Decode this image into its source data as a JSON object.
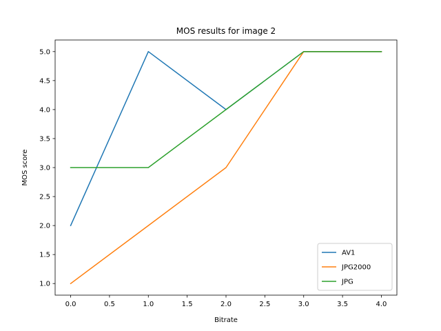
{
  "chart_data": {
    "type": "line",
    "title": "MOS results for image 2",
    "xlabel": "Bitrate",
    "ylabel": "MOS score",
    "xlim": [
      -0.2,
      4.2
    ],
    "ylim": [
      0.8,
      5.2
    ],
    "xticks": [
      0.0,
      0.5,
      1.0,
      1.5,
      2.0,
      2.5,
      3.0,
      3.5,
      4.0
    ],
    "xtick_labels": [
      "0.0",
      "0.5",
      "1.0",
      "1.5",
      "2.0",
      "2.5",
      "3.0",
      "3.5",
      "4.0"
    ],
    "yticks": [
      1.0,
      1.5,
      2.0,
      2.5,
      3.0,
      3.5,
      4.0,
      4.5,
      5.0
    ],
    "ytick_labels": [
      "1.0",
      "1.5",
      "2.0",
      "2.5",
      "3.0",
      "3.5",
      "4.0",
      "4.5",
      "5.0"
    ],
    "grid": false,
    "legend_position": "lower-right",
    "x": [
      0,
      1,
      2,
      3,
      4
    ],
    "series": [
      {
        "name": "AV1",
        "values": [
          2,
          5,
          4,
          5,
          5
        ],
        "color": "#1f77b4"
      },
      {
        "name": "JPG2000",
        "values": [
          1,
          2,
          3,
          5,
          5
        ],
        "color": "#ff7f0e"
      },
      {
        "name": "JPG",
        "values": [
          3,
          3,
          4,
          5,
          5
        ],
        "color": "#2ca02c"
      }
    ]
  }
}
